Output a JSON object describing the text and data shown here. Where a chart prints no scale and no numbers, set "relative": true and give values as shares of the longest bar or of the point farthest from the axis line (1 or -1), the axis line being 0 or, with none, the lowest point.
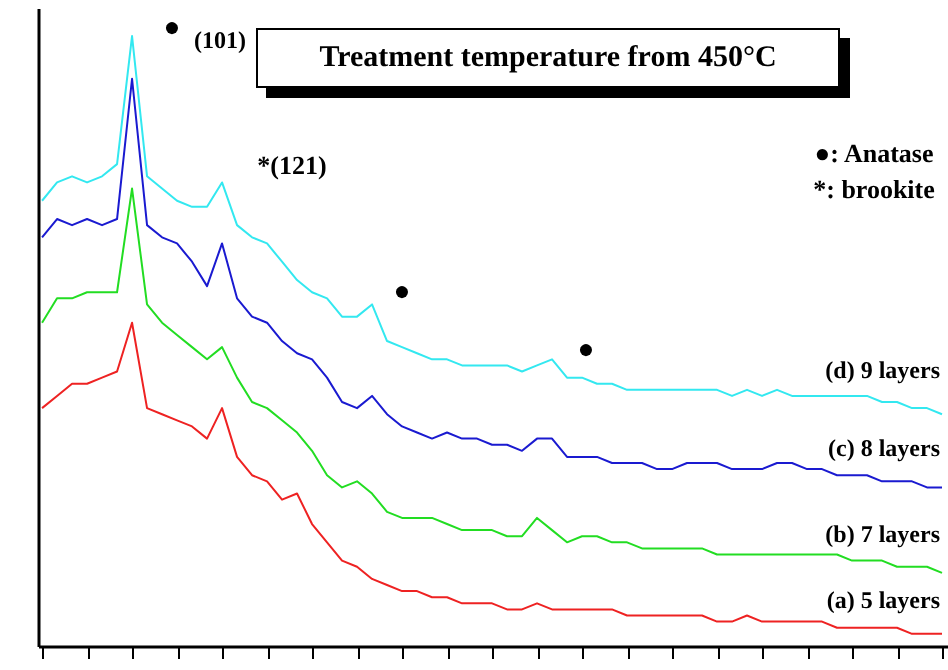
{
  "chart_data": {
    "type": "line",
    "title": "Treatment temperature from 450°C",
    "relative": true,
    "tick_labels": false,
    "categories": [
      null,
      null,
      null,
      null,
      null,
      null,
      null,
      null,
      null,
      null,
      null,
      null,
      null,
      null,
      null,
      null,
      null,
      null,
      null,
      null,
      null,
      null,
      null,
      null,
      null,
      null,
      null,
      null,
      null,
      null,
      null,
      null,
      null,
      null,
      null,
      null,
      null,
      null,
      null,
      null,
      null,
      null,
      null,
      null,
      null,
      null,
      null,
      null,
      null,
      null,
      null,
      null,
      null,
      null,
      null,
      null,
      null,
      null,
      null,
      null,
      null
    ],
    "series": [
      {
        "name": "(a) 5 layers",
        "color": "#ee2222",
        "values": [
          0.39,
          0.41,
          0.43,
          0.43,
          0.44,
          0.45,
          0.53,
          0.39,
          0.38,
          0.37,
          0.36,
          0.34,
          0.39,
          0.31,
          0.28,
          0.27,
          0.24,
          0.25,
          0.2,
          0.17,
          0.14,
          0.13,
          0.11,
          0.1,
          0.09,
          0.09,
          0.08,
          0.08,
          0.07,
          0.07,
          0.07,
          0.06,
          0.06,
          0.07,
          0.06,
          0.06,
          0.06,
          0.06,
          0.06,
          0.05,
          0.05,
          0.05,
          0.05,
          0.05,
          0.05,
          0.04,
          0.04,
          0.05,
          0.04,
          0.04,
          0.04,
          0.04,
          0.04,
          0.03,
          0.03,
          0.03,
          0.03,
          0.03,
          0.02,
          0.02,
          0.02
        ]
      },
      {
        "name": "(b) 7 layers",
        "color": "#22dd22",
        "values": [
          0.53,
          0.57,
          0.57,
          0.58,
          0.58,
          0.58,
          0.75,
          0.56,
          0.53,
          0.51,
          0.49,
          0.47,
          0.49,
          0.44,
          0.4,
          0.39,
          0.37,
          0.35,
          0.32,
          0.28,
          0.26,
          0.27,
          0.25,
          0.22,
          0.21,
          0.21,
          0.21,
          0.2,
          0.19,
          0.19,
          0.19,
          0.18,
          0.18,
          0.21,
          0.19,
          0.17,
          0.18,
          0.18,
          0.17,
          0.17,
          0.16,
          0.16,
          0.16,
          0.16,
          0.16,
          0.15,
          0.15,
          0.15,
          0.15,
          0.15,
          0.15,
          0.15,
          0.15,
          0.15,
          0.14,
          0.14,
          0.14,
          0.13,
          0.13,
          0.13,
          0.12
        ]
      },
      {
        "name": "(c) 8 layers",
        "color": "#1a1ad0",
        "values": [
          0.67,
          0.7,
          0.69,
          0.7,
          0.69,
          0.7,
          0.93,
          0.69,
          0.67,
          0.66,
          0.63,
          0.59,
          0.66,
          0.57,
          0.54,
          0.53,
          0.5,
          0.48,
          0.47,
          0.44,
          0.4,
          0.39,
          0.41,
          0.38,
          0.36,
          0.35,
          0.34,
          0.35,
          0.34,
          0.34,
          0.33,
          0.33,
          0.32,
          0.34,
          0.34,
          0.31,
          0.31,
          0.31,
          0.3,
          0.3,
          0.3,
          0.29,
          0.29,
          0.3,
          0.3,
          0.3,
          0.29,
          0.29,
          0.29,
          0.3,
          0.3,
          0.29,
          0.29,
          0.28,
          0.28,
          0.28,
          0.27,
          0.27,
          0.27,
          0.26,
          0.26
        ]
      },
      {
        "name": "(d) 9 layers",
        "color": "#33e8f0",
        "values": [
          0.73,
          0.76,
          0.77,
          0.76,
          0.77,
          0.79,
          1.0,
          0.77,
          0.75,
          0.73,
          0.72,
          0.72,
          0.76,
          0.69,
          0.67,
          0.66,
          0.63,
          0.6,
          0.58,
          0.57,
          0.54,
          0.54,
          0.56,
          0.5,
          0.49,
          0.48,
          0.47,
          0.47,
          0.46,
          0.46,
          0.46,
          0.46,
          0.45,
          0.46,
          0.47,
          0.44,
          0.44,
          0.43,
          0.43,
          0.42,
          0.42,
          0.42,
          0.42,
          0.42,
          0.42,
          0.42,
          0.41,
          0.42,
          0.41,
          0.42,
          0.41,
          0.41,
          0.41,
          0.41,
          0.41,
          0.41,
          0.4,
          0.4,
          0.39,
          0.39,
          0.38
        ]
      }
    ],
    "annotations": [
      "●",
      "(101)",
      "*(121)",
      "●",
      "●",
      "●: Anatase",
      "*: brookite"
    ]
  }
}
